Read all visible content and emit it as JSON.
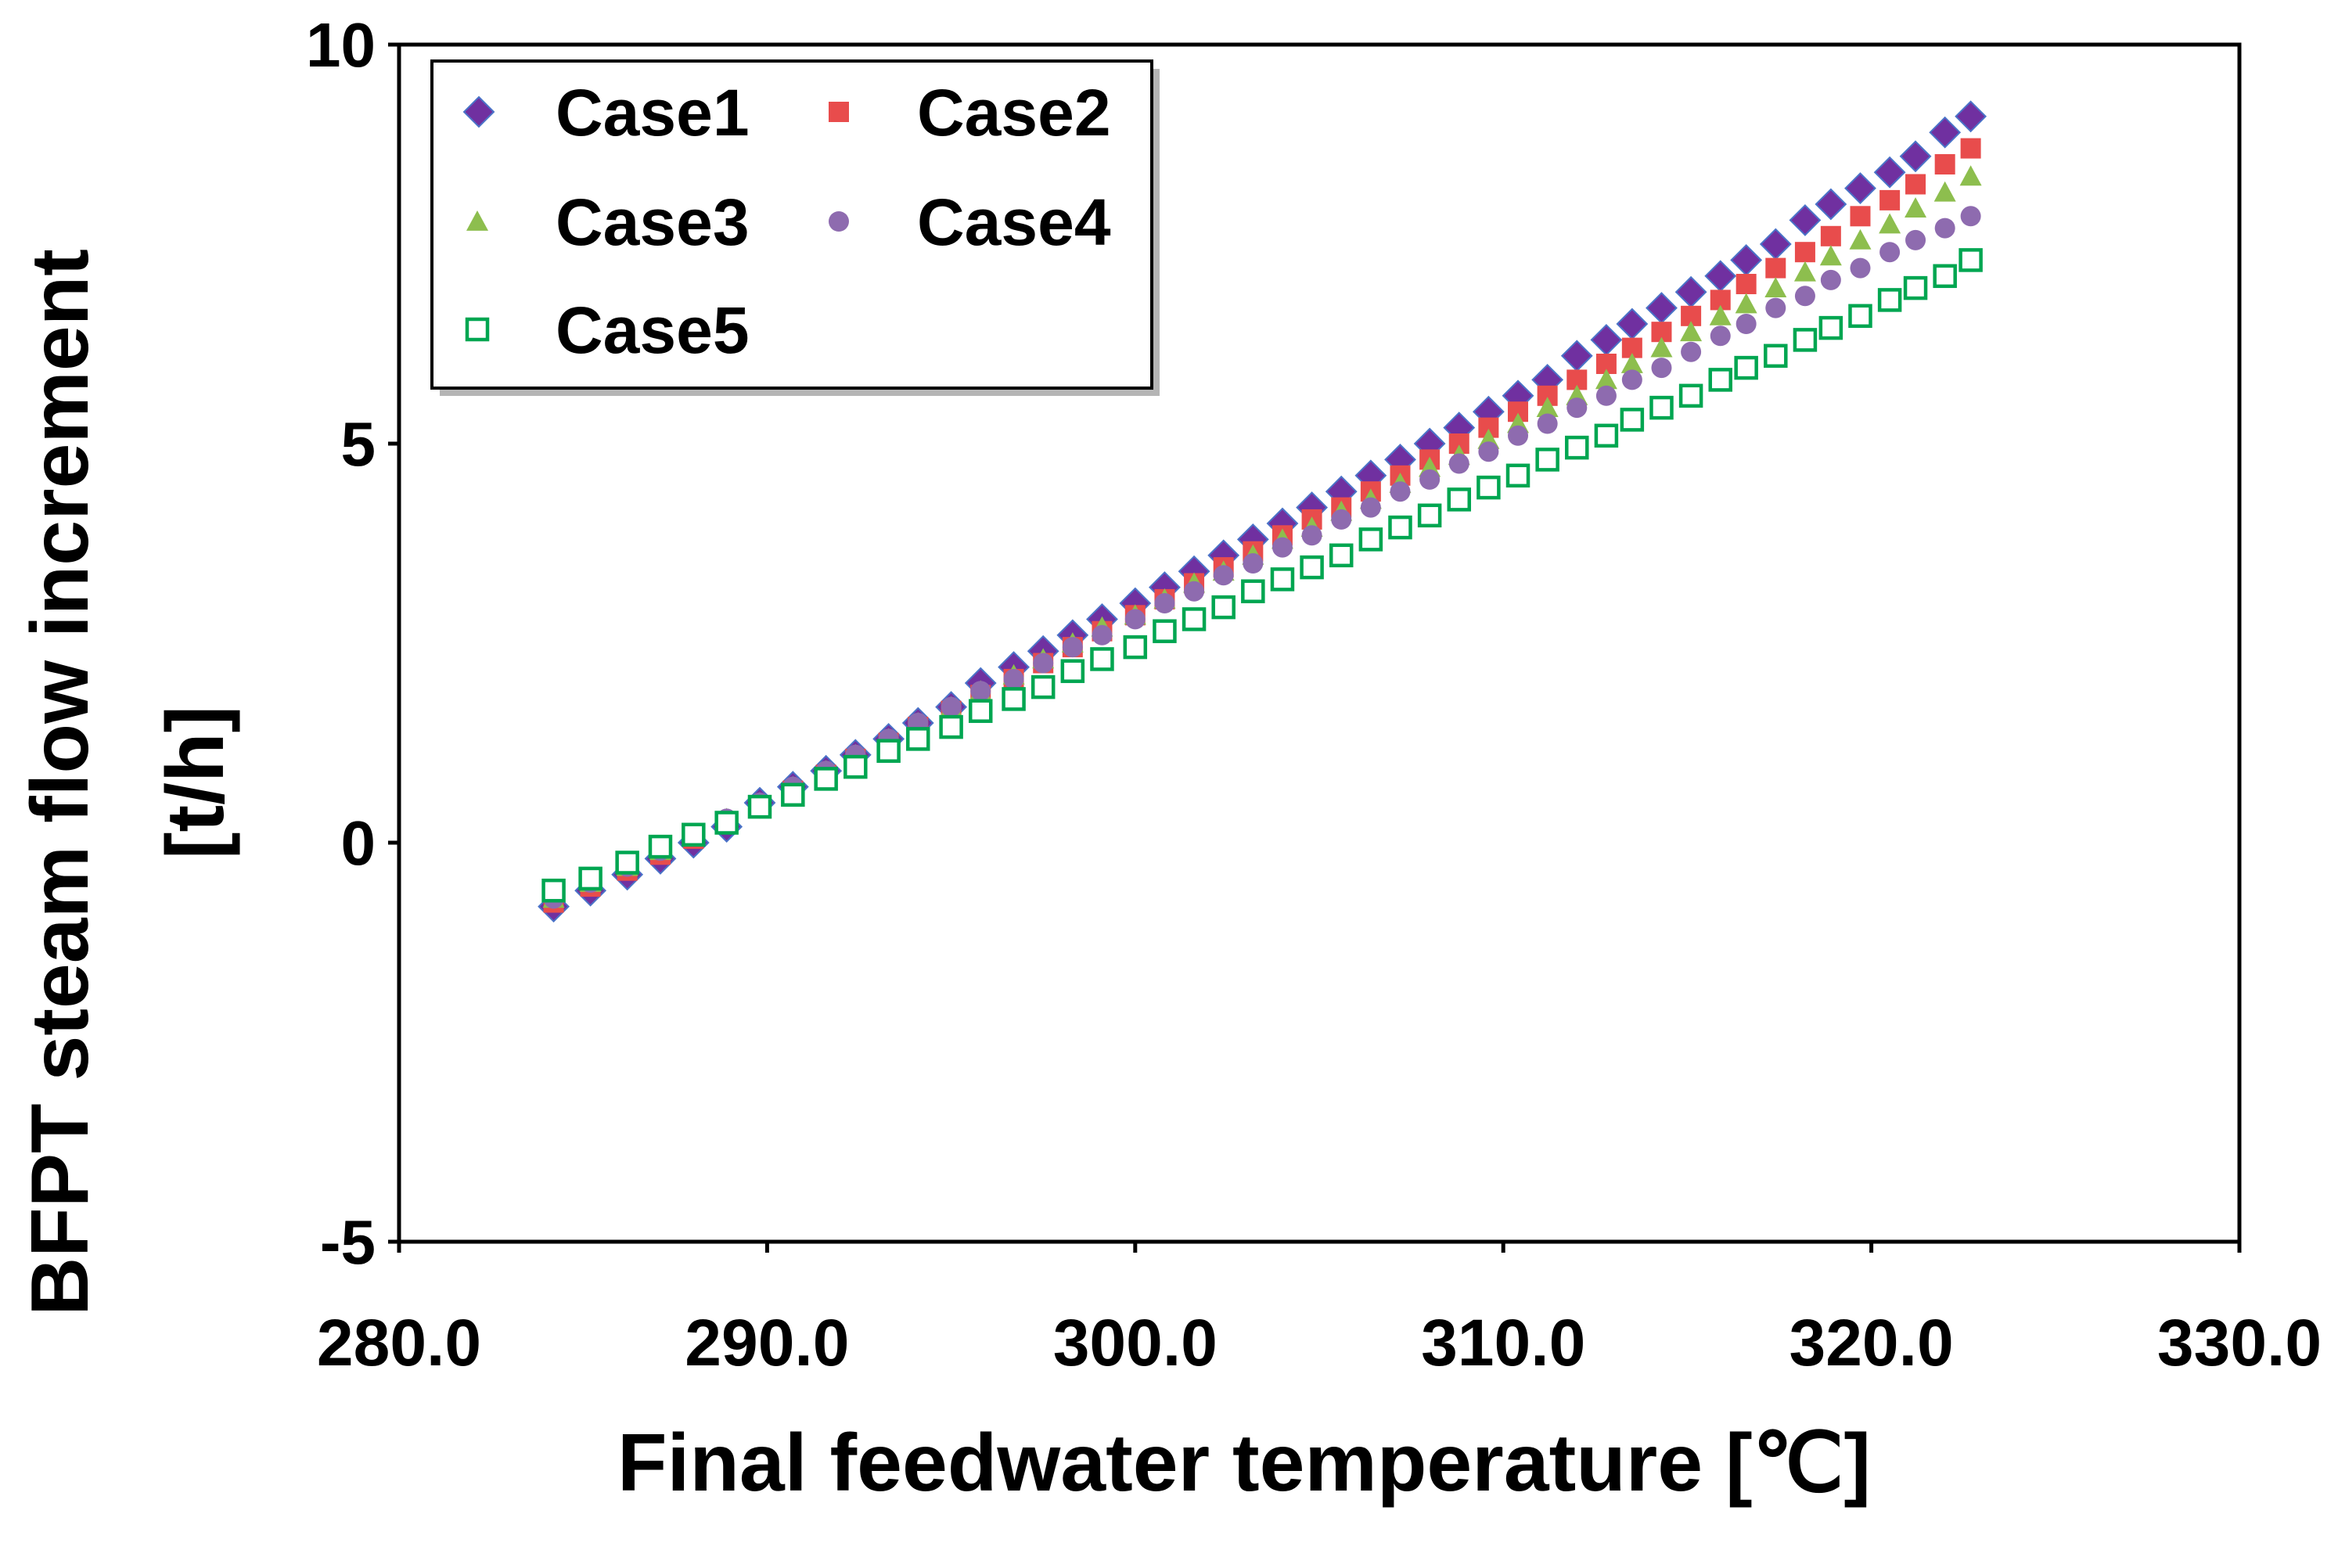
{
  "chart_data": {
    "type": "scatter",
    "title": "",
    "xlabel": "Final feedwater temperature [℃]",
    "ylabel_line1": "BFPT steam flow increment",
    "ylabel_line2": "[t/h]",
    "xlim": [
      280,
      330
    ],
    "ylim": [
      -5,
      10
    ],
    "x_ticks": [
      {
        "value": 280,
        "label": "280.0"
      },
      {
        "value": 290,
        "label": "290.0"
      },
      {
        "value": 300,
        "label": "300.0"
      },
      {
        "value": 310,
        "label": "310.0"
      },
      {
        "value": 320,
        "label": "320.0"
      },
      {
        "value": 330,
        "label": "330.0"
      }
    ],
    "y_ticks": [
      {
        "value": -5,
        "label": "-5"
      },
      {
        "value": 0,
        "label": "0"
      },
      {
        "value": 5,
        "label": "5"
      },
      {
        "value": 10,
        "label": "10"
      }
    ],
    "grid": false,
    "legend_position": "top-left",
    "x": [
      284.2,
      285.2,
      286.2,
      287.1,
      288.0,
      288.9,
      289.8,
      290.7,
      291.6,
      292.4,
      293.3,
      294.1,
      295.0,
      295.8,
      296.7,
      297.5,
      298.3,
      299.1,
      300.0,
      300.8,
      301.6,
      302.4,
      303.2,
      304.0,
      304.8,
      305.6,
      306.4,
      307.2,
      308.0,
      308.8,
      309.6,
      310.4,
      311.2,
      312.0,
      312.8,
      313.5,
      314.3,
      315.1,
      315.9,
      316.6,
      317.4,
      318.2,
      318.9,
      319.7,
      320.5,
      321.2,
      322.0,
      322.7
    ],
    "series": [
      {
        "name": "Case1",
        "marker": "diamond",
        "color": "#7030A0",
        "values": [
          -0.8,
          -0.6,
          -0.4,
          -0.2,
          0.0,
          0.2,
          0.5,
          0.7,
          0.9,
          1.1,
          1.3,
          1.5,
          1.7,
          2.0,
          2.2,
          2.4,
          2.6,
          2.8,
          3.0,
          3.2,
          3.4,
          3.6,
          3.8,
          4.0,
          4.2,
          4.4,
          4.6,
          4.8,
          5.0,
          5.2,
          5.4,
          5.6,
          5.8,
          6.1,
          6.3,
          6.5,
          6.7,
          6.9,
          7.1,
          7.3,
          7.5,
          7.8,
          8.0,
          8.2,
          8.4,
          8.6,
          8.9,
          9.1
        ]
      },
      {
        "name": "Case2",
        "marker": "square",
        "color": "#E84C4C",
        "values": [
          -0.75,
          -0.55,
          -0.35,
          -0.15,
          0.05,
          0.25,
          0.45,
          0.65,
          0.85,
          1.05,
          1.25,
          1.45,
          1.65,
          1.85,
          2.05,
          2.25,
          2.45,
          2.65,
          2.85,
          3.05,
          3.25,
          3.45,
          3.65,
          3.85,
          4.05,
          4.2,
          4.4,
          4.6,
          4.8,
          5.0,
          5.2,
          5.4,
          5.6,
          5.8,
          6.0,
          6.2,
          6.4,
          6.6,
          6.8,
          7.0,
          7.2,
          7.4,
          7.6,
          7.85,
          8.05,
          8.25,
          8.5,
          8.7
        ]
      },
      {
        "name": "Case3",
        "marker": "triangle",
        "color": "#8DBE4E",
        "values": [
          -0.7,
          -0.5,
          -0.3,
          -0.1,
          0.1,
          0.3,
          0.5,
          0.7,
          0.9,
          1.1,
          1.3,
          1.5,
          1.7,
          1.9,
          2.1,
          2.3,
          2.5,
          2.7,
          2.85,
          3.05,
          3.25,
          3.4,
          3.6,
          3.8,
          3.95,
          4.15,
          4.3,
          4.5,
          4.7,
          4.85,
          5.05,
          5.25,
          5.45,
          5.6,
          5.8,
          6.0,
          6.2,
          6.4,
          6.6,
          6.75,
          6.95,
          7.15,
          7.35,
          7.55,
          7.75,
          7.95,
          8.15,
          8.35
        ]
      },
      {
        "name": "Case4",
        "marker": "circle",
        "color": "#8E6BAF",
        "values": [
          -0.7,
          -0.5,
          -0.3,
          -0.1,
          0.1,
          0.3,
          0.5,
          0.7,
          0.9,
          1.1,
          1.3,
          1.5,
          1.7,
          1.9,
          2.05,
          2.25,
          2.45,
          2.6,
          2.8,
          3.0,
          3.15,
          3.35,
          3.5,
          3.7,
          3.85,
          4.05,
          4.2,
          4.4,
          4.55,
          4.75,
          4.9,
          5.1,
          5.25,
          5.45,
          5.6,
          5.8,
          5.95,
          6.15,
          6.35,
          6.5,
          6.7,
          6.85,
          7.05,
          7.2,
          7.4,
          7.55,
          7.7,
          7.85
        ]
      },
      {
        "name": "Case5",
        "marker": "open-square",
        "color": "#00A651",
        "values": [
          -0.6,
          -0.45,
          -0.25,
          -0.05,
          0.1,
          0.25,
          0.45,
          0.6,
          0.8,
          0.95,
          1.15,
          1.3,
          1.45,
          1.65,
          1.8,
          1.95,
          2.15,
          2.3,
          2.45,
          2.65,
          2.8,
          2.95,
          3.15,
          3.3,
          3.45,
          3.6,
          3.8,
          3.95,
          4.1,
          4.3,
          4.45,
          4.6,
          4.8,
          4.95,
          5.1,
          5.3,
          5.45,
          5.6,
          5.8,
          5.95,
          6.1,
          6.3,
          6.45,
          6.6,
          6.8,
          6.95,
          7.1,
          7.3
        ]
      }
    ]
  }
}
